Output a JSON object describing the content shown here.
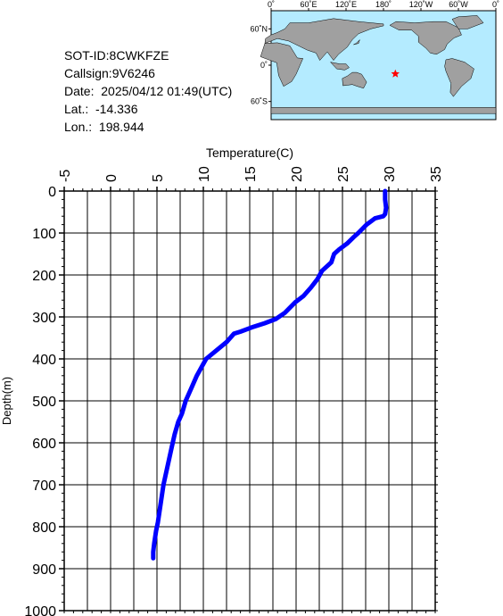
{
  "info": {
    "sot_id": "SOT-ID:8CWKFZE",
    "callsign": "Callsign:9V6246",
    "date": "Date:  2025/04/12 01:49(UTC)",
    "lat": "Lat.:  -14.336",
    "lon": "Lon.:  198.944"
  },
  "map": {
    "top_labels": [
      "0˚",
      "60˚E",
      "120˚E",
      "180˚",
      "120˚W",
      "60˚W",
      "0˚"
    ],
    "side_labels": [
      "60˚N",
      "0˚",
      "60˚S"
    ],
    "ocean_color": "#b4ebff",
    "land_color": "#a0a0a0",
    "marker_color": "#ff0000",
    "marker_lat": -14.336,
    "marker_lon": 198.944
  },
  "chart_data": {
    "type": "line",
    "xlabel": "Temperature(C)",
    "ylabel": "Depth(m)",
    "xlim": [
      -5,
      35
    ],
    "ylim": [
      0,
      1000
    ],
    "y_inverted": true,
    "x_ticks": [
      -5,
      0,
      5,
      10,
      15,
      20,
      25,
      30,
      35
    ],
    "y_ticks": [
      0,
      100,
      200,
      300,
      400,
      500,
      600,
      700,
      800,
      900,
      1000
    ],
    "grid": true,
    "line_color": "#0000ff",
    "series": [
      {
        "x": [
          29.6,
          29.6,
          29.7,
          29.6,
          29.4,
          28.5,
          27.6,
          26.7,
          26.2,
          25.5,
          24.6,
          24.1,
          23.8,
          22.8,
          22.3,
          21.6,
          20.8,
          19.9,
          18.8,
          17.8,
          16.6,
          15.2,
          14.0,
          13.3,
          12.5,
          11.4,
          10.3,
          9.3,
          8.7,
          8.1,
          7.7,
          7.3,
          6.9,
          6.6,
          6.3,
          6.0,
          5.7,
          5.5,
          5.3,
          5.1,
          4.9,
          4.7,
          4.6,
          4.6
        ],
        "y": [
          0,
          20,
          40,
          55,
          60,
          65,
          80,
          100,
          110,
          125,
          140,
          150,
          170,
          190,
          210,
          230,
          250,
          265,
          290,
          305,
          315,
          325,
          335,
          340,
          360,
          380,
          400,
          440,
          470,
          500,
          530,
          550,
          580,
          610,
          640,
          670,
          700,
          730,
          760,
          790,
          810,
          840,
          860,
          875
        ]
      }
    ]
  }
}
